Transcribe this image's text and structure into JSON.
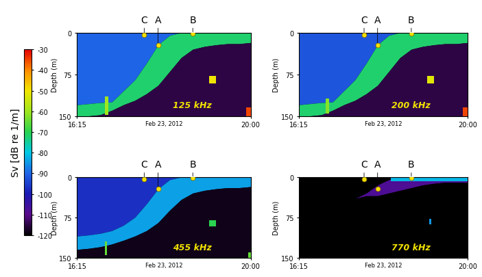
{
  "chart_data": {
    "type": "echogram",
    "xlabel": "Feb 23, 2012",
    "ylabel": "Depth (m)",
    "xlim": [
      16.25,
      20.0
    ],
    "xticks": [
      {
        "value": 16.25,
        "label": "16:15"
      },
      {
        "value": 20.0,
        "label": "20:00"
      }
    ],
    "ylim": [
      150,
      0
    ],
    "yticks": [
      0,
      75,
      150
    ],
    "colorbar": {
      "label": "Sv [dB re 1/m]",
      "range": [
        -120,
        -30
      ],
      "ticks": [
        -30,
        -40,
        -50,
        -60,
        -70,
        -80,
        -90,
        -100,
        -110,
        -120
      ]
    },
    "points": [
      {
        "label": "C",
        "x": 17.7,
        "depth": 4,
        "color": "#f2e200"
      },
      {
        "label": "A",
        "x": 18.0,
        "depth": 22,
        "color": "#f2e200"
      },
      {
        "label": "B",
        "x": 18.75,
        "depth": 2,
        "color": "#f2e200"
      }
    ],
    "x": [
      16.25,
      16.5,
      16.75,
      17.0,
      17.25,
      17.5,
      17.75,
      18.0,
      18.25,
      18.5,
      18.75,
      19.0,
      19.25,
      19.5,
      19.75,
      20.0
    ],
    "panels": [
      {
        "title": "125 kHz",
        "layer_top": [
          130,
          128,
          126,
          125,
          105,
          85,
          55,
          22,
          5,
          0,
          0,
          0,
          0,
          0,
          0,
          0
        ],
        "layer_bottom": [
          150,
          150,
          148,
          140,
          130,
          122,
          110,
          95,
          70,
          45,
          30,
          25,
          22,
          20,
          20,
          18
        ],
        "Sv_above": -90,
        "Sv_layer": -72,
        "Sv_below": -115,
        "patches": [
          {
            "x_start": 16.85,
            "x_end": 16.92,
            "top": 115,
            "bottom": 148,
            "Sv": -60
          },
          {
            "x_start": 19.1,
            "x_end": 19.25,
            "top": 78,
            "bottom": 92,
            "Sv": -50
          },
          {
            "x_start": 19.9,
            "x_end": 20.0,
            "top": 135,
            "bottom": 150,
            "Sv": -35
          }
        ]
      },
      {
        "title": "200 kHz",
        "layer_top": [
          130,
          128,
          126,
          125,
          105,
          85,
          55,
          22,
          5,
          0,
          0,
          0,
          0,
          0,
          0,
          0
        ],
        "layer_bottom": [
          150,
          150,
          148,
          140,
          130,
          122,
          110,
          95,
          70,
          45,
          30,
          25,
          22,
          20,
          20,
          18
        ],
        "Sv_above": -92,
        "Sv_layer": -72,
        "Sv_below": -115,
        "patches": [
          {
            "x_start": 16.85,
            "x_end": 16.92,
            "top": 118,
            "bottom": 146,
            "Sv": -62
          },
          {
            "x_start": 19.1,
            "x_end": 19.25,
            "top": 78,
            "bottom": 92,
            "Sv": -52
          },
          {
            "x_start": 19.9,
            "x_end": 20.0,
            "top": 135,
            "bottom": 150,
            "Sv": -35
          }
        ]
      },
      {
        "title": "455 kHz",
        "layer_top": [
          110,
          108,
          105,
          100,
          90,
          75,
          50,
          22,
          5,
          0,
          0,
          0,
          0,
          0,
          0,
          0
        ],
        "layer_bottom": [
          135,
          133,
          130,
          125,
          118,
          110,
          100,
          85,
          62,
          42,
          30,
          25,
          22,
          20,
          20,
          18
        ],
        "Sv_above": -97,
        "Sv_layer": -84,
        "Sv_below": -118,
        "patches": [
          {
            "x_start": 16.85,
            "x_end": 16.9,
            "top": 120,
            "bottom": 145,
            "Sv": -65
          },
          {
            "x_start": 19.1,
            "x_end": 19.25,
            "top": 80,
            "bottom": 92,
            "Sv": -70
          },
          {
            "x_start": 19.95,
            "x_end": 20.0,
            "top": 140,
            "bottom": 150,
            "Sv": -65
          }
        ]
      },
      {
        "title": "770 kHz",
        "layer_top": [
          40,
          40,
          40,
          40,
          40,
          40,
          30,
          15,
          5,
          0,
          0,
          0,
          0,
          0,
          0,
          0
        ],
        "layer_bottom": [
          40,
          40,
          40,
          40,
          40,
          40,
          35,
          35,
          30,
          25,
          20,
          15,
          12,
          10,
          10,
          10
        ],
        "Sv_above": -120,
        "Sv_layer": -108,
        "Sv_below": -120,
        "patches": [
          {
            "x_start": 18.3,
            "x_end": 20.0,
            "top": 0,
            "bottom": 8,
            "Sv": -82
          },
          {
            "x_start": 19.15,
            "x_end": 19.2,
            "top": 78,
            "bottom": 88,
            "Sv": -85
          }
        ]
      }
    ]
  }
}
